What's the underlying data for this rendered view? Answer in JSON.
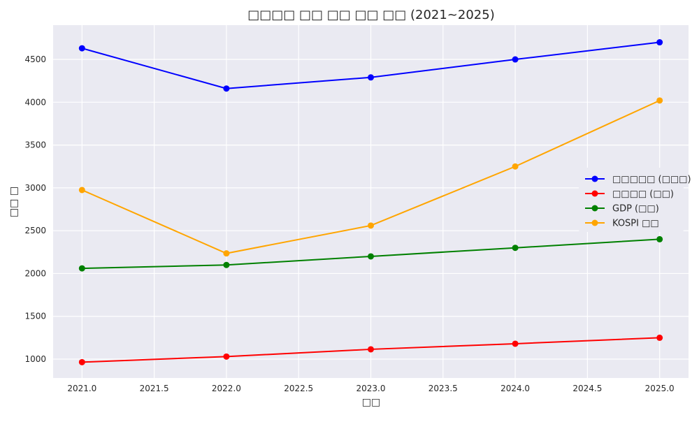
{
  "chart_data": {
    "type": "line",
    "title": "□□□□ □□ □□ □□ □□ (2021~2025)",
    "xlabel": "□□",
    "ylabel": "□□ □",
    "x": [
      2021,
      2022,
      2023,
      2024,
      2025
    ],
    "xlim": [
      2020.8,
      2025.2
    ],
    "ylim": [
      780,
      4900
    ],
    "xticks": [
      "2021.0",
      "2021.5",
      "2022.0",
      "2022.5",
      "2023.0",
      "2023.5",
      "2024.0",
      "2024.5",
      "2025.0"
    ],
    "xtick_values": [
      2021,
      2021.5,
      2022,
      2022.5,
      2023,
      2023.5,
      2024,
      2024.5,
      2025
    ],
    "yticks": [
      "1000",
      "1500",
      "2000",
      "2500",
      "3000",
      "3500",
      "4000",
      "4500"
    ],
    "ytick_values": [
      1000,
      1500,
      2000,
      2500,
      3000,
      3500,
      4000,
      4500
    ],
    "grid": true,
    "legend_position": "center-right",
    "series": [
      {
        "name": "□□□□□ (□□□)",
        "color": "#0000ff",
        "values": [
          4630,
          4160,
          4290,
          4500,
          4700
        ]
      },
      {
        "name": "□□□□ (□□)",
        "color": "#ff0000",
        "values": [
          965,
          1030,
          1115,
          1180,
          1250
        ]
      },
      {
        "name": "GDP (□□)",
        "color": "#008000",
        "values": [
          2060,
          2100,
          2200,
          2300,
          2400
        ]
      },
      {
        "name": "KOSPI □□",
        "color": "#ffa500",
        "values": [
          2975,
          2235,
          2560,
          3250,
          4020
        ]
      }
    ]
  }
}
